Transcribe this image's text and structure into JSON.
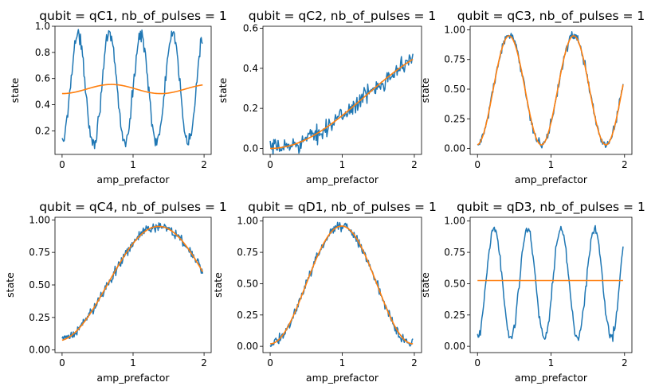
{
  "colors": {
    "data": "#1f77b4",
    "fit": "#ff7f0e"
  },
  "chart_data": [
    {
      "type": "line",
      "title": "qubit = qC1, nb_of_pulses = 1",
      "xlabel": "amp_prefactor",
      "ylabel": "state",
      "xlim": [
        -0.1,
        2.1
      ],
      "ylim": [
        0.02,
        1.0
      ],
      "xticks": [
        0,
        1,
        2
      ],
      "xtick_labels": [
        "0",
        "1",
        "2"
      ],
      "yticks": [
        0.2,
        0.4,
        0.6,
        0.8,
        1.0
      ],
      "ytick_labels": [
        "0.2",
        "0.4",
        "0.6",
        "0.8",
        "1.0"
      ],
      "series": [
        {
          "role": "data",
          "color": "#1f77b4",
          "model": "cos",
          "params": {
            "A": 0.41,
            "B": 0.52,
            "f": 2.25,
            "phi": 3.14159,
            "noise": 0.05
          },
          "range": [
            0,
            1.98
          ]
        },
        {
          "role": "fit",
          "color": "#ff7f0e",
          "model": "cos",
          "params": {
            "A": 0.035,
            "B": 0.52,
            "f": 0.72,
            "phi": 3.14159,
            "noise": 0
          },
          "range": [
            0,
            1.98
          ]
        }
      ]
    },
    {
      "type": "line",
      "title": "qubit = qC2, nb_of_pulses = 1",
      "xlabel": "amp_prefactor",
      "ylabel": "state",
      "xlim": [
        -0.1,
        2.1
      ],
      "ylim": [
        -0.03,
        0.61
      ],
      "xticks": [
        0,
        1,
        2
      ],
      "xtick_labels": [
        "0",
        "1",
        "2"
      ],
      "yticks": [
        0.0,
        0.2,
        0.4,
        0.6
      ],
      "ytick_labels": [
        "0.0",
        "0.2",
        "0.4",
        "0.6"
      ],
      "series": [
        {
          "role": "data",
          "color": "#1f77b4",
          "model": "cos",
          "params": {
            "A": -0.26,
            "B": 0.26,
            "f": 0.19,
            "phi": 0,
            "noise": 0.04
          },
          "range": [
            0,
            1.98
          ]
        },
        {
          "role": "fit",
          "color": "#ff7f0e",
          "model": "cos",
          "params": {
            "A": -0.26,
            "B": 0.26,
            "f": 0.19,
            "phi": 0,
            "noise": 0
          },
          "range": [
            0,
            1.98
          ]
        }
      ]
    },
    {
      "type": "line",
      "title": "qubit = qC3, nb_of_pulses = 1",
      "xlabel": "amp_prefactor",
      "ylabel": "state",
      "xlim": [
        -0.1,
        2.1
      ],
      "ylim": [
        -0.05,
        1.03
      ],
      "xticks": [
        0,
        1,
        2
      ],
      "xtick_labels": [
        "0",
        "1",
        "2"
      ],
      "yticks": [
        0.0,
        0.25,
        0.5,
        0.75,
        1.0
      ],
      "ytick_labels": [
        "0.00",
        "0.25",
        "0.50",
        "0.75",
        "1.00"
      ],
      "series": [
        {
          "role": "data",
          "color": "#1f77b4",
          "model": "cos",
          "params": {
            "A": -0.46,
            "B": 0.49,
            "f": 1.14,
            "phi": 0.06,
            "noise": 0.035
          },
          "range": [
            0,
            1.98
          ]
        },
        {
          "role": "fit",
          "color": "#ff7f0e",
          "model": "cos",
          "params": {
            "A": -0.46,
            "B": 0.49,
            "f": 1.14,
            "phi": 0.06,
            "noise": 0
          },
          "range": [
            0,
            1.98
          ]
        }
      ]
    },
    {
      "type": "line",
      "title": "qubit = qC4, nb_of_pulses = 1",
      "xlabel": "amp_prefactor",
      "ylabel": "state",
      "xlim": [
        -0.1,
        2.1
      ],
      "ylim": [
        -0.02,
        1.02
      ],
      "xticks": [
        0,
        1,
        2
      ],
      "xtick_labels": [
        "0",
        "1",
        "2"
      ],
      "yticks": [
        0.0,
        0.25,
        0.5,
        0.75,
        1.0
      ],
      "ytick_labels": [
        "0.00",
        "0.25",
        "0.50",
        "0.75",
        "1.00"
      ],
      "series": [
        {
          "role": "data",
          "color": "#1f77b4",
          "model": "cos",
          "params": {
            "A": -0.44,
            "B": 0.51,
            "f": 0.35,
            "phi": 0.15,
            "noise": 0.035
          },
          "range": [
            0,
            1.98
          ]
        },
        {
          "role": "fit",
          "color": "#ff7f0e",
          "model": "cos",
          "params": {
            "A": -0.44,
            "B": 0.51,
            "f": 0.35,
            "phi": 0.15,
            "noise": 0
          },
          "range": [
            0,
            1.98
          ]
        }
      ]
    },
    {
      "type": "line",
      "title": "qubit = qD1, nb_of_pulses = 1",
      "xlabel": "amp_prefactor",
      "ylabel": "state",
      "xlim": [
        -0.1,
        2.1
      ],
      "ylim": [
        -0.05,
        1.03
      ],
      "xticks": [
        0,
        1,
        2
      ],
      "xtick_labels": [
        "0",
        "1",
        "2"
      ],
      "yticks": [
        0.0,
        0.25,
        0.5,
        0.75,
        1.0
      ],
      "ytick_labels": [
        "0.00",
        "0.25",
        "0.50",
        "0.75",
        "1.00"
      ],
      "series": [
        {
          "role": "data",
          "color": "#1f77b4",
          "model": "cos",
          "params": {
            "A": -0.47,
            "B": 0.49,
            "f": 0.505,
            "phi": 0,
            "noise": 0.035
          },
          "range": [
            0,
            1.98
          ]
        },
        {
          "role": "fit",
          "color": "#ff7f0e",
          "model": "cos",
          "params": {
            "A": -0.47,
            "B": 0.49,
            "f": 0.505,
            "phi": 0,
            "noise": 0
          },
          "range": [
            0,
            1.98
          ]
        }
      ]
    },
    {
      "type": "line",
      "title": "qubit = qD3, nb_of_pulses = 1",
      "xlabel": "amp_prefactor",
      "ylabel": "state",
      "xlim": [
        -0.1,
        2.1
      ],
      "ylim": [
        -0.05,
        1.03
      ],
      "xticks": [
        0,
        1,
        2
      ],
      "xtick_labels": [
        "0",
        "1",
        "2"
      ],
      "yticks": [
        0.0,
        0.25,
        0.5,
        0.75,
        1.0
      ],
      "ytick_labels": [
        "0.00",
        "0.25",
        "0.50",
        "0.75",
        "1.00"
      ],
      "series": [
        {
          "role": "data",
          "color": "#1f77b4",
          "model": "cos",
          "params": {
            "A": -0.44,
            "B": 0.5,
            "f": 2.2,
            "phi": 0,
            "noise": 0.04
          },
          "range": [
            0,
            1.98
          ]
        },
        {
          "role": "fit",
          "color": "#ff7f0e",
          "model": "cos",
          "params": {
            "A": 0,
            "B": 0.525,
            "f": 0,
            "phi": 0,
            "noise": 0
          },
          "range": [
            0,
            1.98
          ]
        }
      ]
    }
  ]
}
